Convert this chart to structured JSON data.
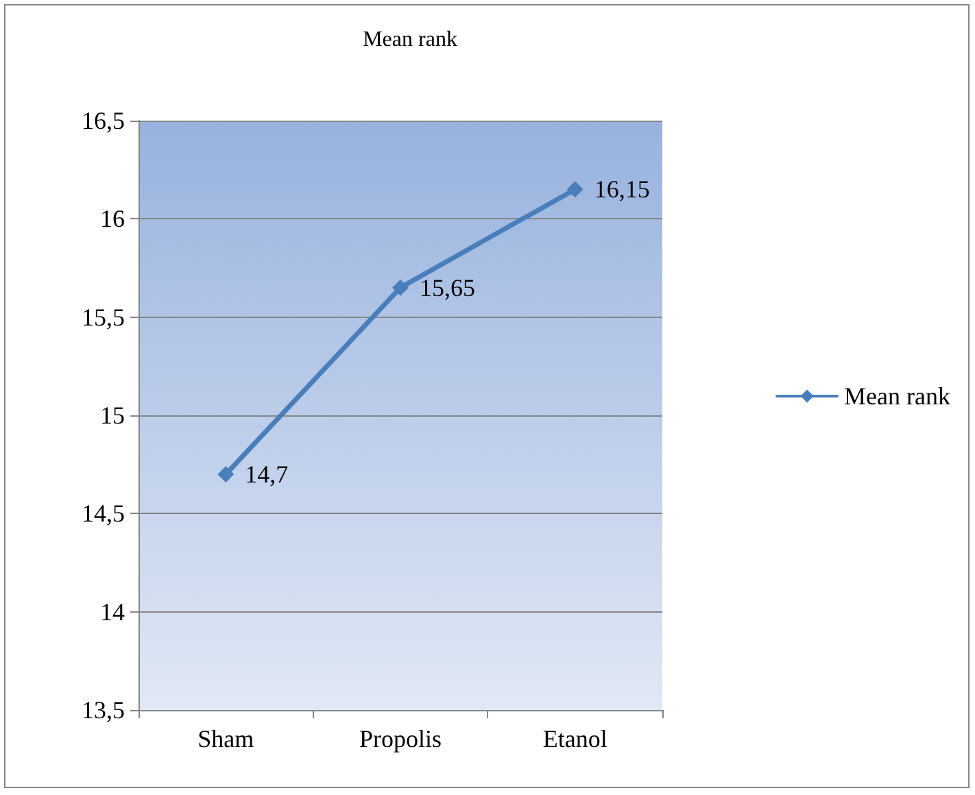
{
  "chart_data": {
    "type": "line",
    "title": "Mean rank",
    "categories": [
      "Sham",
      "Propolis",
      "Etanol"
    ],
    "series": [
      {
        "name": "Mean rank",
        "color": "#4a7ebb",
        "values": [
          14.7,
          15.65,
          16.15
        ],
        "value_labels": [
          "14,7",
          "15,65",
          "16,15"
        ]
      }
    ],
    "ylim": [
      13.5,
      16.5
    ],
    "yticks": [
      {
        "value": 13.5,
        "label": "13,5"
      },
      14,
      {
        "value": 14.5,
        "label": "14,5"
      },
      15,
      {
        "value": 15.5,
        "label": "15,5"
      },
      16,
      {
        "value": 16.5,
        "label": "16,5"
      }
    ],
    "grid": "y",
    "legend": "right",
    "marker": "diamond",
    "line_style": "solid"
  }
}
